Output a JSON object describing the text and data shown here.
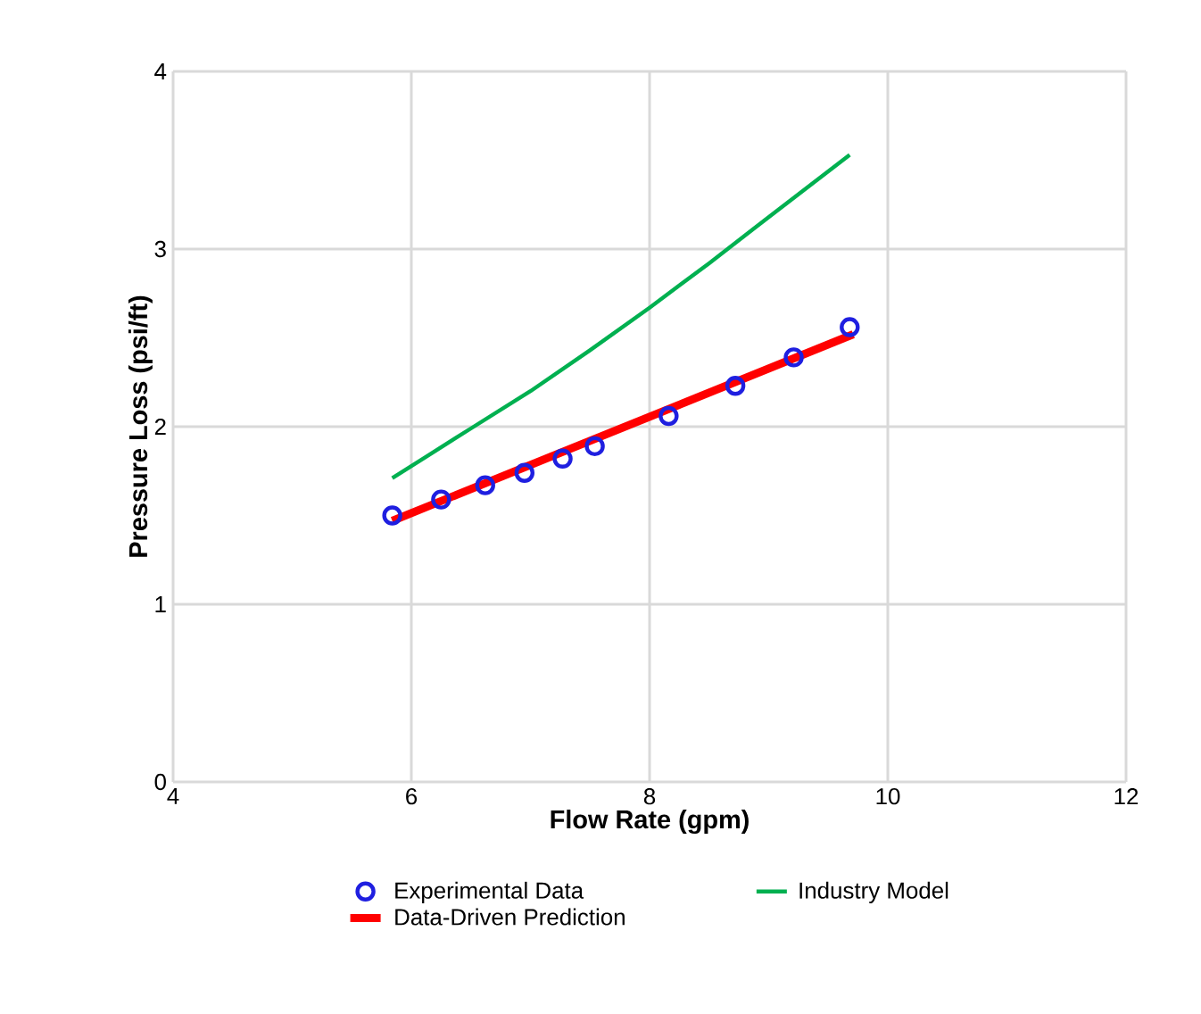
{
  "chart_data": {
    "type": "line",
    "xlabel": "Flow Rate (gpm)",
    "ylabel": "Pressure Loss (psi/ft)",
    "xlim": [
      4,
      12
    ],
    "xticks": [
      4,
      6,
      8,
      10,
      12
    ],
    "ylim": [
      0,
      4
    ],
    "yticks": [
      0,
      1,
      2,
      3,
      4
    ],
    "grid": true,
    "legend": "bottom",
    "series": [
      {
        "name": "Experimental Data",
        "type": "scatter",
        "marker": "circle",
        "color": "#1f1fe0",
        "x": [
          5.84,
          6.25,
          6.62,
          6.95,
          7.27,
          7.54,
          8.16,
          8.72,
          9.21,
          9.68
        ],
        "values": [
          1.5,
          1.59,
          1.67,
          1.74,
          1.82,
          1.89,
          2.06,
          2.23,
          2.39,
          2.56
        ]
      },
      {
        "name": "Industry Model",
        "marker": "none",
        "color": "#00b050",
        "x": [
          5.84,
          6.5,
          7,
          7.5,
          8,
          8.5,
          9,
          9.68
        ],
        "values": [
          1.71,
          1.99,
          2.2,
          2.43,
          2.67,
          2.92,
          3.18,
          3.53
        ]
      },
      {
        "name": "Data-Driven Prediction",
        "marker": "none",
        "color": "#ff0000",
        "x": [
          5.84,
          9.71
        ],
        "values": [
          1.47,
          2.52
        ]
      }
    ]
  }
}
